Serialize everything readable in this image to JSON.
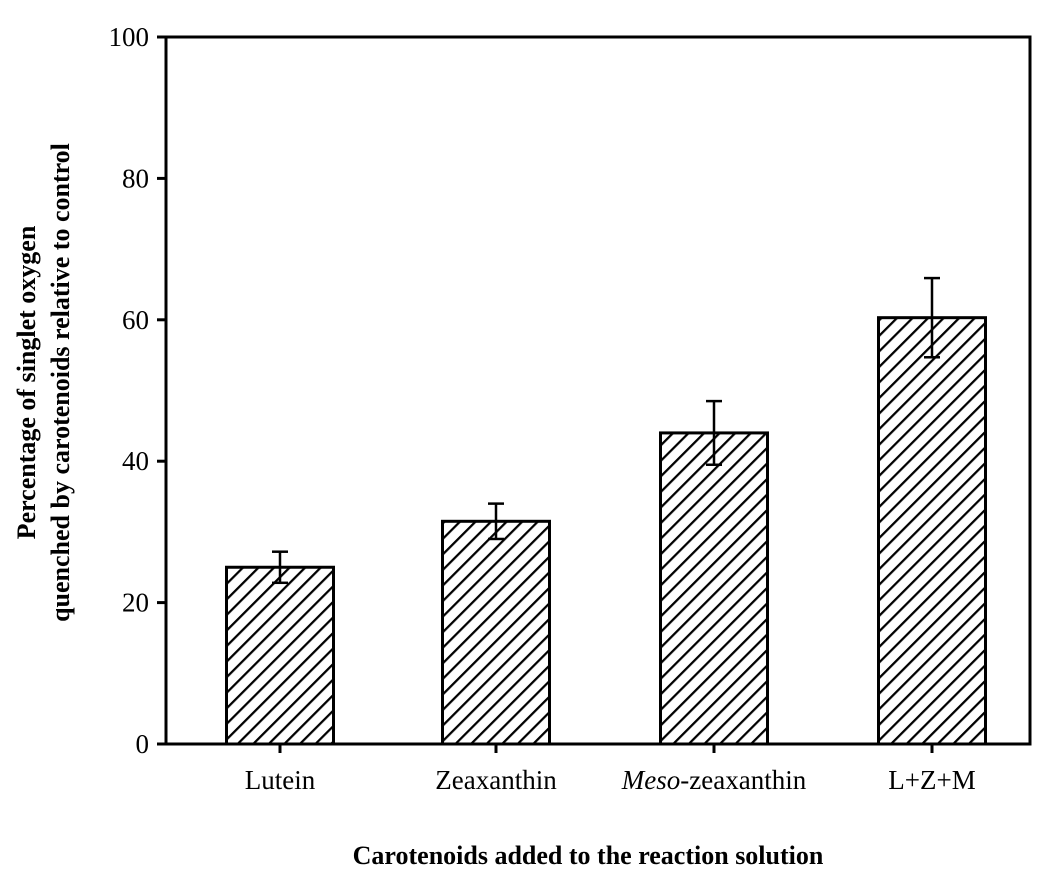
{
  "chart_data": {
    "type": "bar",
    "categories": [
      "Lutein",
      "Zeaxanthin",
      "Meso-zeaxanthin",
      "L+Z+M"
    ],
    "category_labels": [
      {
        "parts": [
          {
            "text": "Lutein",
            "italic": false
          }
        ]
      },
      {
        "parts": [
          {
            "text": "Zeaxanthin",
            "italic": false
          }
        ]
      },
      {
        "parts": [
          {
            "text": "Meso",
            "italic": true
          },
          {
            "text": "-zeaxanthin",
            "italic": false
          }
        ]
      },
      {
        "parts": [
          {
            "text": "L+Z+M",
            "italic": false
          }
        ]
      }
    ],
    "values": [
      25,
      31.5,
      44,
      60.3
    ],
    "errors": [
      2.2,
      2.5,
      4.5,
      5.6
    ],
    "ylim": [
      0,
      100
    ],
    "yticks": [
      0,
      20,
      40,
      60,
      80,
      100
    ],
    "xlabel": "Carotenoids added to the reaction solution",
    "ylabel_lines": [
      "Percentage of singlet oxygen",
      "quenched by carotenoids relative to control"
    ],
    "bar_fill": "hatched",
    "colors": {
      "ink": "#000000",
      "background": "#ffffff"
    },
    "grid": false,
    "legend": "none"
  }
}
